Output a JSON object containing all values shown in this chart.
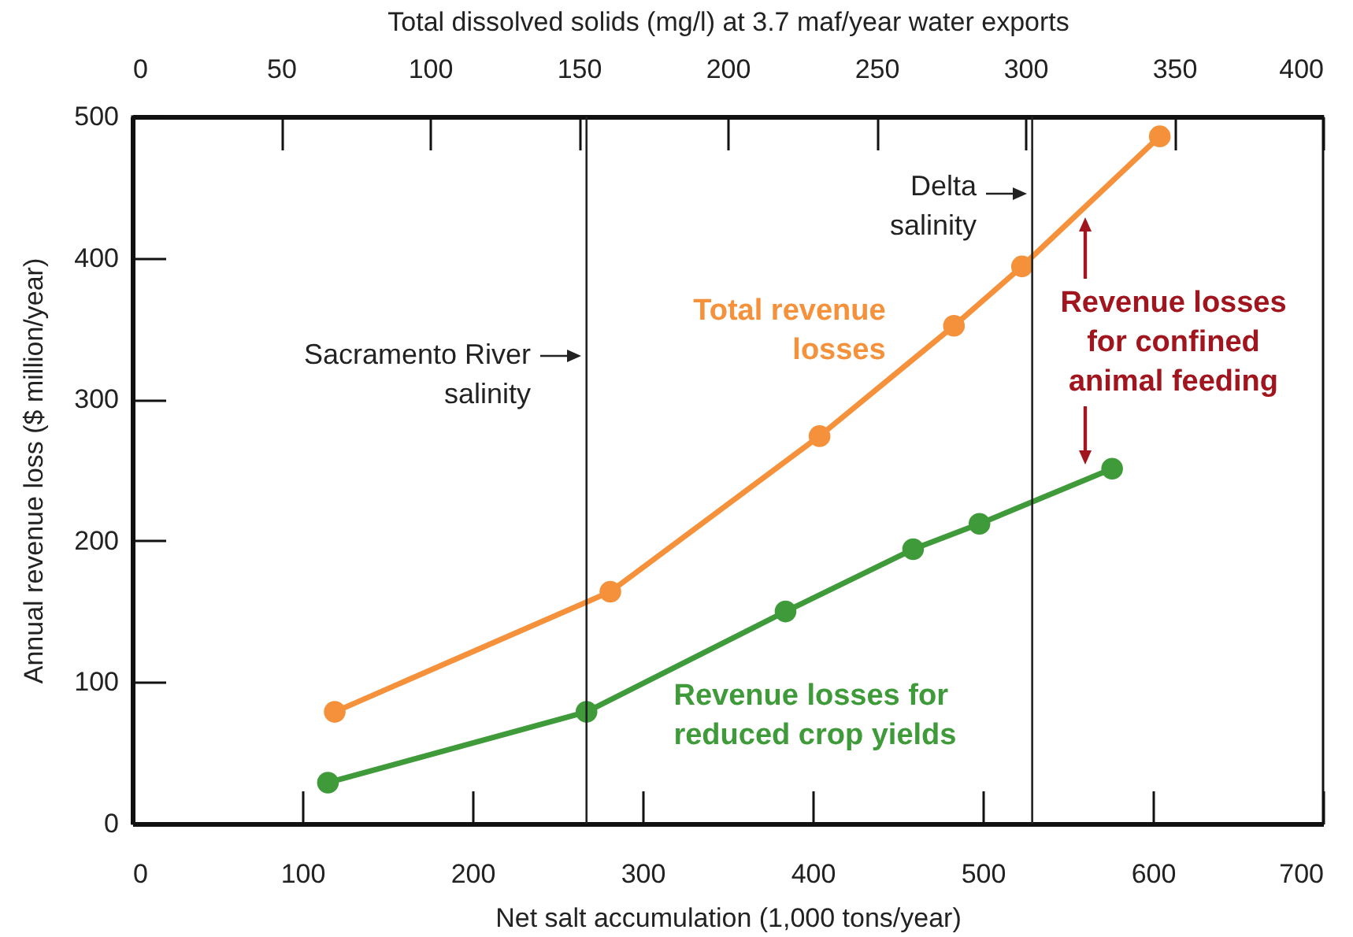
{
  "chart_data": {
    "type": "line",
    "xlabel": "Net salt accumulation (1,000 tons/year)",
    "x2label": "Total dissolved solids (mg/l) at 3.7 maf/year water exports",
    "ylabel": "Annual revenue loss ($ million/year)",
    "xlim": [
      0,
      700
    ],
    "xticks": [
      0,
      100,
      200,
      300,
      400,
      500,
      600,
      700
    ],
    "x2lim": [
      0,
      400
    ],
    "x2ticks": [
      0,
      50,
      100,
      150,
      200,
      250,
      300,
      350,
      400
    ],
    "ylim": [
      0,
      500
    ],
    "yticks": [
      0,
      100,
      200,
      300,
      400,
      500
    ],
    "series": [
      {
        "name": "Total revenue\nlosses",
        "color": "#f5913a",
        "x": [
          119,
          281,
          404,
          483,
          523,
          604
        ],
        "values": [
          79,
          164,
          274,
          352,
          394,
          486
        ]
      },
      {
        "name": "Revenue losses for\nreduced crop yields",
        "color": "#3f9a3a",
        "x": [
          115,
          267,
          384,
          459,
          498,
          576
        ],
        "values": [
          29,
          79,
          150,
          194,
          212,
          251
        ]
      }
    ],
    "ref_lines": [
      {
        "axis": "x",
        "value": 267,
        "color": "#222222"
      },
      {
        "axis": "x",
        "value": 529,
        "color": "#222222"
      }
    ],
    "annotations": [
      "Sacramento River\nsalinity",
      "Delta\nsalinity",
      "Revenue losses\nfor confined\nanimal feeding"
    ],
    "marker": "circle"
  }
}
